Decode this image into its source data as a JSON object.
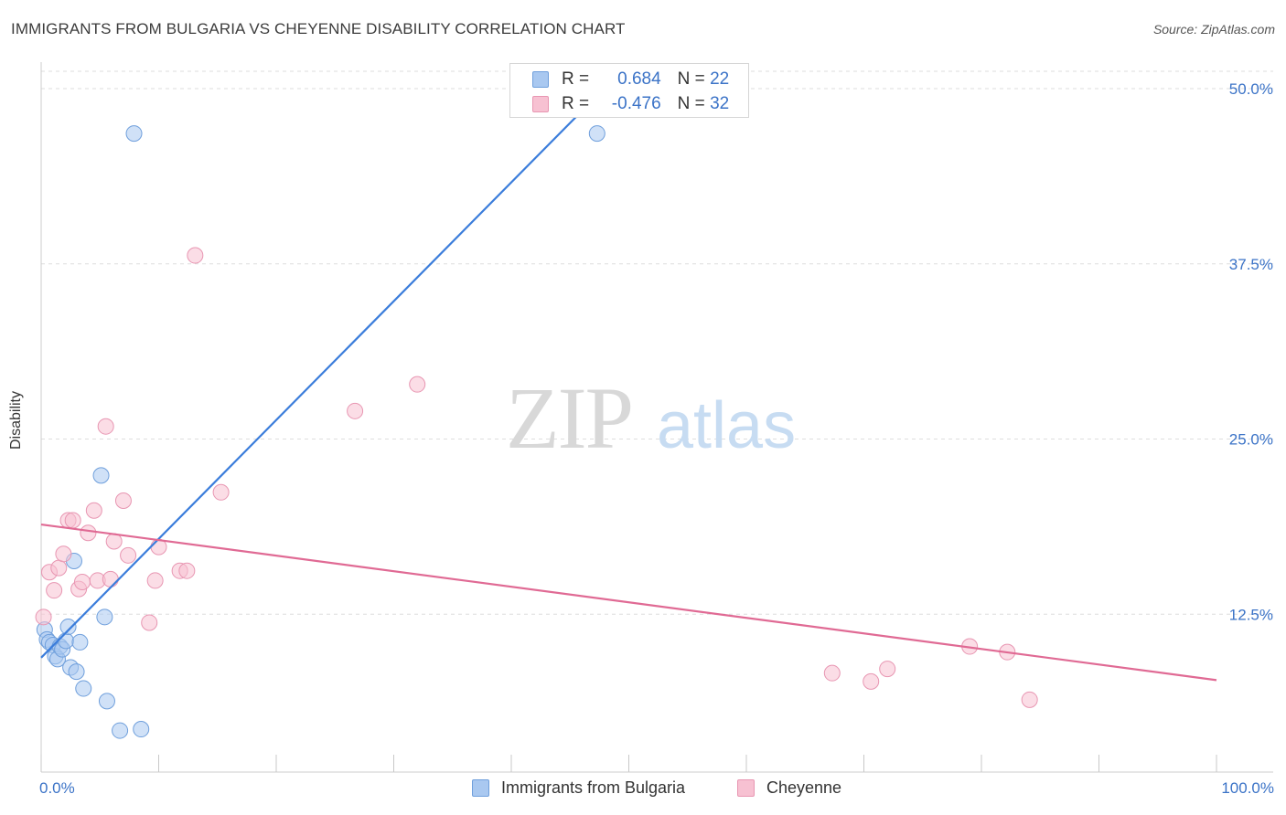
{
  "header": {
    "title": "IMMIGRANTS FROM BULGARIA VS CHEYENNE DISABILITY CORRELATION CHART",
    "source": "Source: ZipAtlas.com"
  },
  "watermark": {
    "zip": "ZIP",
    "atlas": "atlas"
  },
  "legend_top": {
    "rows": [
      {
        "r_label": "R =",
        "r_value": "0.684",
        "n_label": "N =",
        "n_value": "22"
      },
      {
        "r_label": "R =",
        "r_value": "-0.476",
        "n_label": "N =",
        "n_value": "32"
      }
    ]
  },
  "axes": {
    "y_title": "Disability",
    "x_min_label": "0.0%",
    "x_max_label": "100.0%",
    "y_tick_labels": [
      "50.0%",
      "37.5%",
      "25.0%",
      "12.5%"
    ]
  },
  "legend_bottom": [
    "Immigrants from Bulgaria",
    "Cheyenne"
  ],
  "colors": {
    "blue_fill": "#a9c8f0",
    "blue_stroke": "#6f9fdc",
    "blue_line": "#3b7ddb",
    "pink_fill": "#f7c1d2",
    "pink_stroke": "#e896b2",
    "pink_line": "#e06a94",
    "tick_text": "#3b73c7"
  },
  "chart_data": {
    "type": "scatter",
    "title": "IMMIGRANTS FROM BULGARIA VS CHEYENNE DISABILITY CORRELATION CHART",
    "xlabel": "",
    "ylabel": "Disability",
    "xlim": [
      0,
      100
    ],
    "ylim": [
      0,
      50
    ],
    "y_ticks": [
      12.5,
      25.0,
      37.5,
      50.0
    ],
    "grid": true,
    "legend_position": "bottom",
    "series": [
      {
        "name": "Immigrants from Bulgaria",
        "r": 0.684,
        "n": 22,
        "points": [
          [
            0.3,
            11.4
          ],
          [
            0.5,
            10.7
          ],
          [
            0.7,
            10.5
          ],
          [
            1.0,
            10.3
          ],
          [
            1.2,
            9.5
          ],
          [
            1.4,
            9.3
          ],
          [
            1.6,
            10.2
          ],
          [
            1.8,
            10.0
          ],
          [
            2.1,
            10.6
          ],
          [
            2.3,
            11.6
          ],
          [
            2.5,
            8.7
          ],
          [
            2.8,
            16.3
          ],
          [
            3.0,
            8.4
          ],
          [
            3.3,
            10.5
          ],
          [
            3.6,
            7.2
          ],
          [
            5.1,
            22.4
          ],
          [
            5.4,
            12.3
          ],
          [
            5.6,
            6.3
          ],
          [
            6.7,
            4.2
          ],
          [
            7.9,
            46.8
          ],
          [
            8.5,
            4.3
          ],
          [
            47.3,
            46.8
          ]
        ],
        "trend": {
          "x": [
            0,
            47.3
          ],
          "y": [
            9.4,
            49.5
          ]
        }
      },
      {
        "name": "Cheyenne",
        "r": -0.476,
        "n": 32,
        "points": [
          [
            0.2,
            12.3
          ],
          [
            0.7,
            15.5
          ],
          [
            1.1,
            14.2
          ],
          [
            1.5,
            15.8
          ],
          [
            1.9,
            16.8
          ],
          [
            2.3,
            19.2
          ],
          [
            2.7,
            19.2
          ],
          [
            3.2,
            14.3
          ],
          [
            3.5,
            14.8
          ],
          [
            4.0,
            18.3
          ],
          [
            4.5,
            19.9
          ],
          [
            4.8,
            14.9
          ],
          [
            5.5,
            25.9
          ],
          [
            5.9,
            15.0
          ],
          [
            6.2,
            17.7
          ],
          [
            7.0,
            20.6
          ],
          [
            7.4,
            16.7
          ],
          [
            9.2,
            11.9
          ],
          [
            9.7,
            14.9
          ],
          [
            10.0,
            17.3
          ],
          [
            11.8,
            15.6
          ],
          [
            12.4,
            15.6
          ],
          [
            13.1,
            38.1
          ],
          [
            15.3,
            21.2
          ],
          [
            26.7,
            27.0
          ],
          [
            32.0,
            28.9
          ],
          [
            67.3,
            8.3
          ],
          [
            70.6,
            7.7
          ],
          [
            72.0,
            8.6
          ],
          [
            79.0,
            10.2
          ],
          [
            82.2,
            9.8
          ],
          [
            84.1,
            6.4
          ]
        ],
        "trend": {
          "x": [
            0,
            100
          ],
          "y": [
            18.9,
            7.8
          ]
        }
      }
    ]
  }
}
